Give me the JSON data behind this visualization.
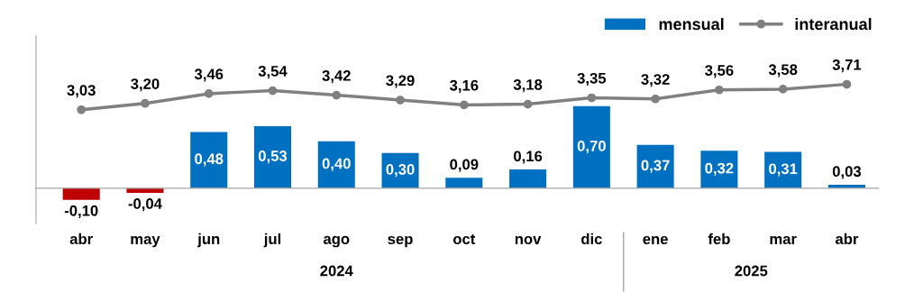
{
  "chart_data": {
    "type": "bar",
    "categories": [
      "abr",
      "may",
      "jun",
      "jul",
      "ago",
      "sep",
      "oct",
      "nov",
      "dic",
      "ene",
      "feb",
      "mar",
      "abr"
    ],
    "series": [
      {
        "name": "mensual",
        "color": "#0070c0",
        "colors": [
          "#c00000",
          "#c00000",
          "#0070c0",
          "#0070c0",
          "#0070c0",
          "#0070c0",
          "#0070c0",
          "#0070c0",
          "#0070c0",
          "#0070c0",
          "#0070c0",
          "#0070c0",
          "#0070c0"
        ],
        "values": [
          -0.1,
          -0.04,
          0.48,
          0.53,
          0.4,
          0.3,
          0.09,
          0.16,
          0.7,
          0.37,
          0.32,
          0.31,
          0.03
        ],
        "value_labels": [
          "-0,10",
          "-0,04",
          "0,48",
          "0,53",
          "0,40",
          "0,30",
          "0,09",
          "0,16",
          "0,70",
          "0,37",
          "0,32",
          "0,31",
          "0,03"
        ]
      },
      {
        "name": "interanual",
        "type": "line",
        "axis": "y2",
        "color": "#808080",
        "marker": "circle",
        "line_style": "solid",
        "values": [
          3.03,
          3.2,
          3.46,
          3.54,
          3.42,
          3.29,
          3.16,
          3.18,
          3.35,
          3.32,
          3.56,
          3.58,
          3.71
        ],
        "value_labels": [
          "3,03",
          "3,20",
          "3,46",
          "3,54",
          "3,42",
          "3,29",
          "3,16",
          "3,18",
          "3,35",
          "3,32",
          "3,56",
          "3,58",
          "3,71"
        ]
      }
    ],
    "ylim": [
      -0.3,
      1.3
    ],
    "y2lim": [
      0,
      5
    ],
    "tick_labels": false,
    "annotations": [
      "2024",
      "2025"
    ],
    "legend": "top right"
  }
}
